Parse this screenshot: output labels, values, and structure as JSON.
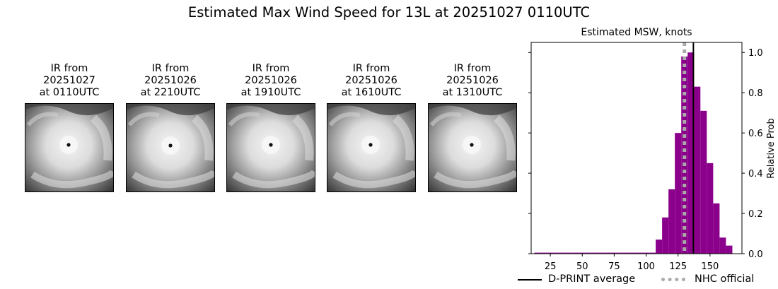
{
  "title": "Estimated Max Wind Speed for 13L at 20251027 0110UTC",
  "ir_panels": [
    {
      "line1": "IR from",
      "line2": "20251027",
      "line3": "at 0110UTC"
    },
    {
      "line1": "IR from",
      "line2": "20251026",
      "line3": "at 2210UTC"
    },
    {
      "line1": "IR from",
      "line2": "20251026",
      "line3": "at 1910UTC"
    },
    {
      "line1": "IR from",
      "line2": "20251026",
      "line3": "at 1610UTC"
    },
    {
      "line1": "IR from",
      "line2": "20251026",
      "line3": "at 1310UTC"
    }
  ],
  "chart_data": {
    "type": "bar",
    "title": "Estimated MSW, knots",
    "xlabel": "",
    "ylabel": "Relative Prob",
    "xlim": [
      10,
      175
    ],
    "ylim": [
      0,
      1.05
    ],
    "x_ticks": [
      25,
      50,
      75,
      100,
      125,
      150
    ],
    "y_ticks": [
      0.0,
      0.2,
      0.4,
      0.6,
      0.8,
      1.0
    ],
    "y_tick_labels": [
      "0.0",
      "0.2",
      "0.4",
      "0.6",
      "0.8",
      "1.0"
    ],
    "y_axis_side": "right",
    "bar_color": "#8b008b",
    "bin_width": 5,
    "bins": [
      {
        "x": 15,
        "value": 0.005
      },
      {
        "x": 20,
        "value": 0.005
      },
      {
        "x": 25,
        "value": 0.005
      },
      {
        "x": 30,
        "value": 0.005
      },
      {
        "x": 35,
        "value": 0.005
      },
      {
        "x": 40,
        "value": 0.005
      },
      {
        "x": 45,
        "value": 0.005
      },
      {
        "x": 50,
        "value": 0.005
      },
      {
        "x": 55,
        "value": 0.005
      },
      {
        "x": 60,
        "value": 0.005
      },
      {
        "x": 65,
        "value": 0.005
      },
      {
        "x": 70,
        "value": 0.005
      },
      {
        "x": 75,
        "value": 0.005
      },
      {
        "x": 80,
        "value": 0.005
      },
      {
        "x": 85,
        "value": 0.005
      },
      {
        "x": 90,
        "value": 0.005
      },
      {
        "x": 95,
        "value": 0.005
      },
      {
        "x": 100,
        "value": 0.005
      },
      {
        "x": 105,
        "value": 0.005
      },
      {
        "x": 110,
        "value": 0.07
      },
      {
        "x": 115,
        "value": 0.18
      },
      {
        "x": 120,
        "value": 0.32
      },
      {
        "x": 125,
        "value": 0.6
      },
      {
        "x": 130,
        "value": 0.98
      },
      {
        "x": 135,
        "value": 1.0
      },
      {
        "x": 140,
        "value": 0.83
      },
      {
        "x": 145,
        "value": 0.71
      },
      {
        "x": 150,
        "value": 0.45
      },
      {
        "x": 155,
        "value": 0.25
      },
      {
        "x": 160,
        "value": 0.08
      },
      {
        "x": 165,
        "value": 0.04
      }
    ],
    "lines": [
      {
        "name": "D-PRINT average",
        "x": 137,
        "color": "#000000",
        "style": "solid"
      },
      {
        "name": "NHC official",
        "x": 130,
        "color": "#aaaaaa",
        "style": "dotted"
      }
    ],
    "legend_position": "bottom"
  }
}
